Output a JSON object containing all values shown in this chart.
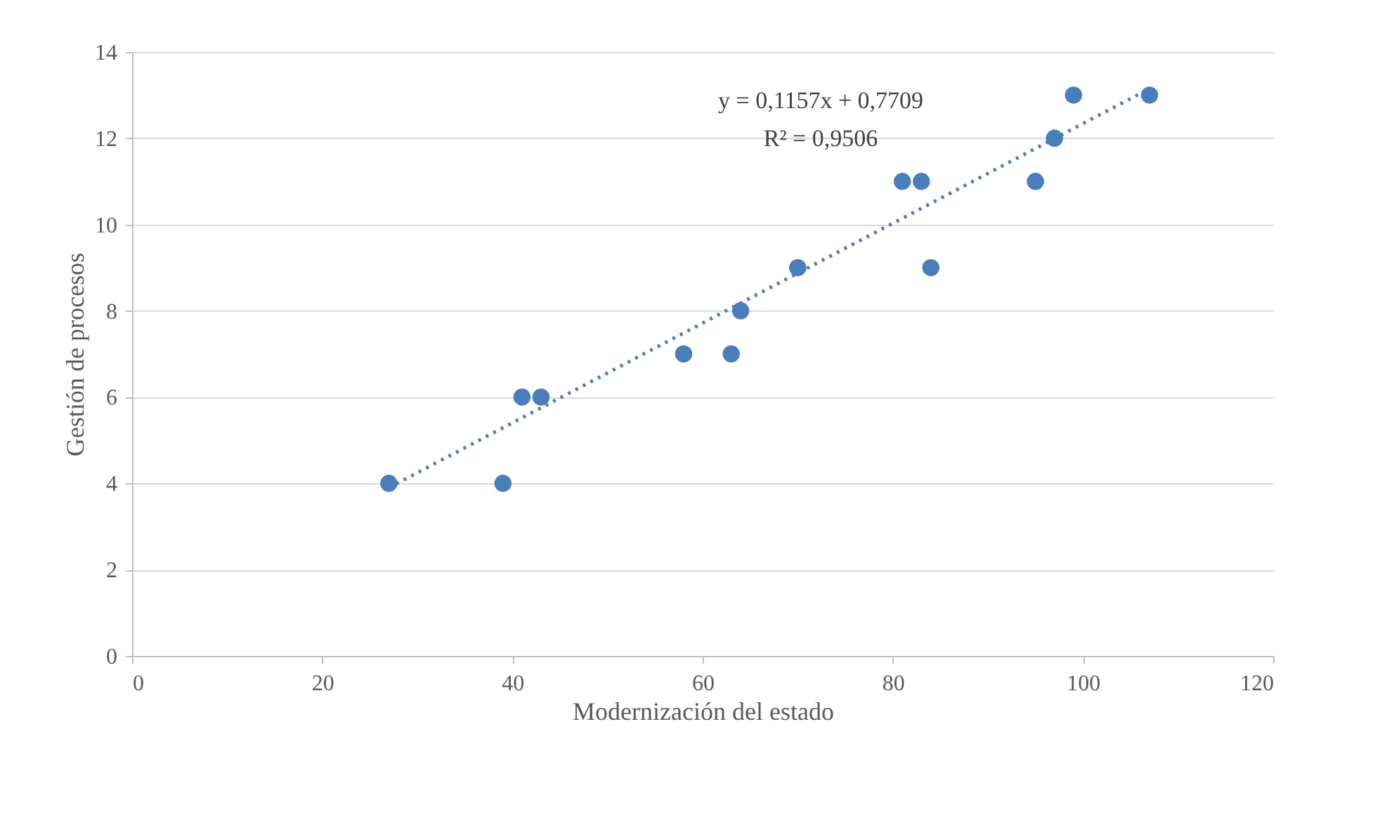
{
  "chart_data": {
    "type": "scatter",
    "xlabel": "Modernización del estado",
    "ylabel": "Gestión de procesos",
    "xlim": [
      0,
      120
    ],
    "xticks": [
      0,
      20,
      40,
      60,
      80,
      100,
      120
    ],
    "ylim": [
      0,
      14
    ],
    "yticks": [
      0,
      2,
      4,
      6,
      8,
      10,
      12,
      14
    ],
    "grid": "y",
    "series": [
      {
        "color": "#4a7ebb",
        "marker": "circle",
        "x": [
          27,
          39,
          41,
          43,
          58,
          63,
          64,
          70,
          81,
          83,
          84,
          95,
          97,
          99,
          107
        ],
        "values": [
          4,
          4,
          6,
          6,
          7,
          7,
          8,
          9,
          11,
          11,
          9,
          11,
          12,
          13,
          13
        ]
      },
      {
        "type": "line",
        "color": "#4a7ebb",
        "line_style": "dotted",
        "x": [
          27,
          107
        ],
        "values": [
          3.9,
          13.15
        ]
      }
    ],
    "annotations": [
      "y = 0,1157x + 0,7709",
      "R² = 0,9506"
    ]
  }
}
